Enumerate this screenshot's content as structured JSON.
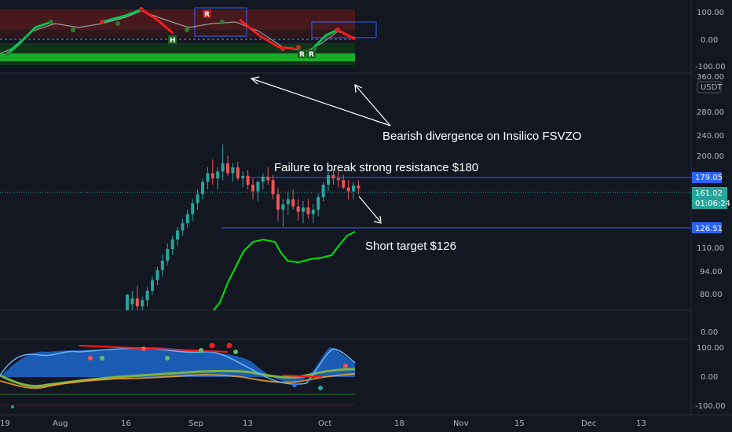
{
  "colors": {
    "background": "#131722",
    "grid": "#1e222d",
    "up": "#26a69a",
    "down": "#ef5350",
    "bright_green": "#00e600",
    "red": "#ff1a1a",
    "blue_box": "#2962ff",
    "level_line": "#2962ff",
    "price_green": "#4caf50"
  },
  "top_panel": {
    "y_ticks": [
      "100.00",
      "0.00",
      "-100.00"
    ],
    "markers": [
      "R",
      "H",
      "R",
      "R"
    ]
  },
  "main_panel": {
    "y_ticks": [
      "360.00",
      "280.00",
      "240.00",
      "200.00",
      "110.00",
      "94.00",
      "80.00"
    ],
    "currency": "USDT",
    "resistance_label": "179.05",
    "current_price": "161.02",
    "countdown": "01:06:24",
    "support_label": "126.51",
    "annotations": {
      "divergence": "Bearish divergence on Insilico FSVZO",
      "resistance": "Failure to break strong resistance $180",
      "target": "Short target $126"
    }
  },
  "bottom_panel": {
    "y_ticks_top": [
      "0.00"
    ],
    "y_ticks": [
      "100.00",
      "0.00",
      "-100.00"
    ]
  },
  "x_axis": {
    "labels": [
      "19",
      "Aug",
      "16",
      "Sep",
      "13",
      "Oct",
      "18",
      "Nov",
      "15",
      "Dec",
      "13"
    ]
  },
  "chart_data": {
    "type": "line",
    "title": "",
    "xlabel": "",
    "ylabel": "",
    "series": [
      {
        "values": [
          [
            65,
            73,
            62,
            80
          ],
          [
            75,
            82,
            70,
            78
          ],
          [
            78,
            85,
            72,
            74
          ],
          [
            74,
            79,
            70,
            77
          ],
          [
            77,
            84,
            74,
            82
          ],
          [
            82,
            90,
            80,
            88
          ],
          [
            88,
            96,
            85,
            94
          ],
          [
            94,
            104,
            90,
            100
          ],
          [
            100,
            112,
            97,
            108
          ],
          [
            108,
            118,
            104,
            115
          ],
          [
            115,
            125,
            110,
            122
          ],
          [
            122,
            132,
            118,
            128
          ],
          [
            128,
            140,
            124,
            136
          ],
          [
            136,
            150,
            130,
            146
          ],
          [
            146,
            160,
            140,
            155
          ],
          [
            155,
            172,
            150,
            168
          ],
          [
            168,
            185,
            160,
            178
          ],
          [
            178,
            195,
            165,
            172
          ],
          [
            172,
            185,
            160,
            180
          ],
          [
            180,
            215,
            170,
            190
          ],
          [
            190,
            200,
            175,
            178
          ],
          [
            178,
            190,
            168,
            185
          ],
          [
            185,
            192,
            170,
            172
          ],
          [
            172,
            180,
            162,
            175
          ],
          [
            175,
            182,
            160,
            165
          ],
          [
            165,
            172,
            150,
            158
          ],
          [
            158,
            170,
            148,
            168
          ],
          [
            168,
            178,
            160,
            174
          ],
          [
            174,
            185,
            165,
            170
          ],
          [
            170,
            176,
            150,
            155
          ],
          [
            155,
            162,
            130,
            140
          ],
          [
            140,
            150,
            125,
            145
          ],
          [
            145,
            158,
            135,
            150
          ],
          [
            150,
            160,
            140,
            143
          ],
          [
            143,
            150,
            130,
            138
          ],
          [
            138,
            148,
            128,
            142
          ],
          [
            142,
            150,
            132,
            136
          ],
          [
            136,
            145,
            128,
            140
          ],
          [
            140,
            155,
            134,
            152
          ],
          [
            152,
            168,
            148,
            165
          ],
          [
            165,
            180,
            158,
            176
          ],
          [
            176,
            183,
            165,
            172
          ],
          [
            172,
            180,
            162,
            170
          ],
          [
            170,
            176,
            160,
            162
          ],
          [
            162,
            170,
            150,
            158
          ],
          [
            158,
            168,
            150,
            164
          ],
          [
            164,
            170,
            155,
            161
          ]
        ]
      }
    ],
    "resistance": 179.05,
    "support": 126.51,
    "target": 126
  }
}
